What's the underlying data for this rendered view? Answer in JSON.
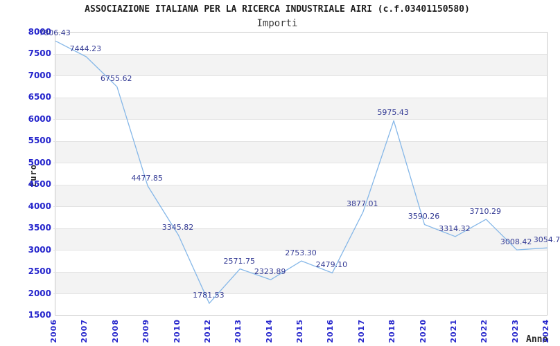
{
  "header": {
    "title": "ASSOCIAZIONE ITALIANA PER LA RICERCA INDUSTRIALE AIRI (c.f.03401150580)",
    "subtitle": "Importi"
  },
  "chart_data": {
    "type": "line",
    "title": "Importi",
    "categories": [
      "2006",
      "2007",
      "2008",
      "2009",
      "2010",
      "2012",
      "2013",
      "2014",
      "2015",
      "2016",
      "2017",
      "2018",
      "2020",
      "2021",
      "2022",
      "2023",
      "2024"
    ],
    "values": [
      7806.43,
      7444.23,
      6755.62,
      4477.85,
      3345.82,
      1781.53,
      2571.75,
      2323.89,
      2753.3,
      2479.1,
      3877.01,
      5975.43,
      3590.26,
      3314.32,
      3710.29,
      3008.42,
      3054.7
    ],
    "point_labels": [
      "7806.43",
      "7444.23",
      "6755.62",
      "4477.85",
      "3345.82",
      "1781.53",
      "2571.75",
      "2323.89",
      "2753.30",
      "2479.10",
      "3877.01",
      "5975.43",
      "3590.26",
      "3314.32",
      "3710.29",
      "3008.42",
      "3054.7"
    ],
    "xlabel": "Anno",
    "ylabel": "Euro",
    "ylim": [
      1500,
      8000
    ],
    "y_ticks": [
      8000,
      7500,
      7000,
      6500,
      6000,
      5500,
      5000,
      4500,
      4000,
      3500,
      3000,
      2500,
      2000,
      1500
    ],
    "grid": "horizontal gridlines with alternating stripe bands",
    "legend": "none",
    "colors": {
      "line": "#85b7e8",
      "tick_labels": "#2525cc",
      "point_labels": "#333a94",
      "stripe": "#f3f3f3",
      "gridline": "#e3e3e3",
      "plot_border": "#c9c9c9"
    }
  }
}
